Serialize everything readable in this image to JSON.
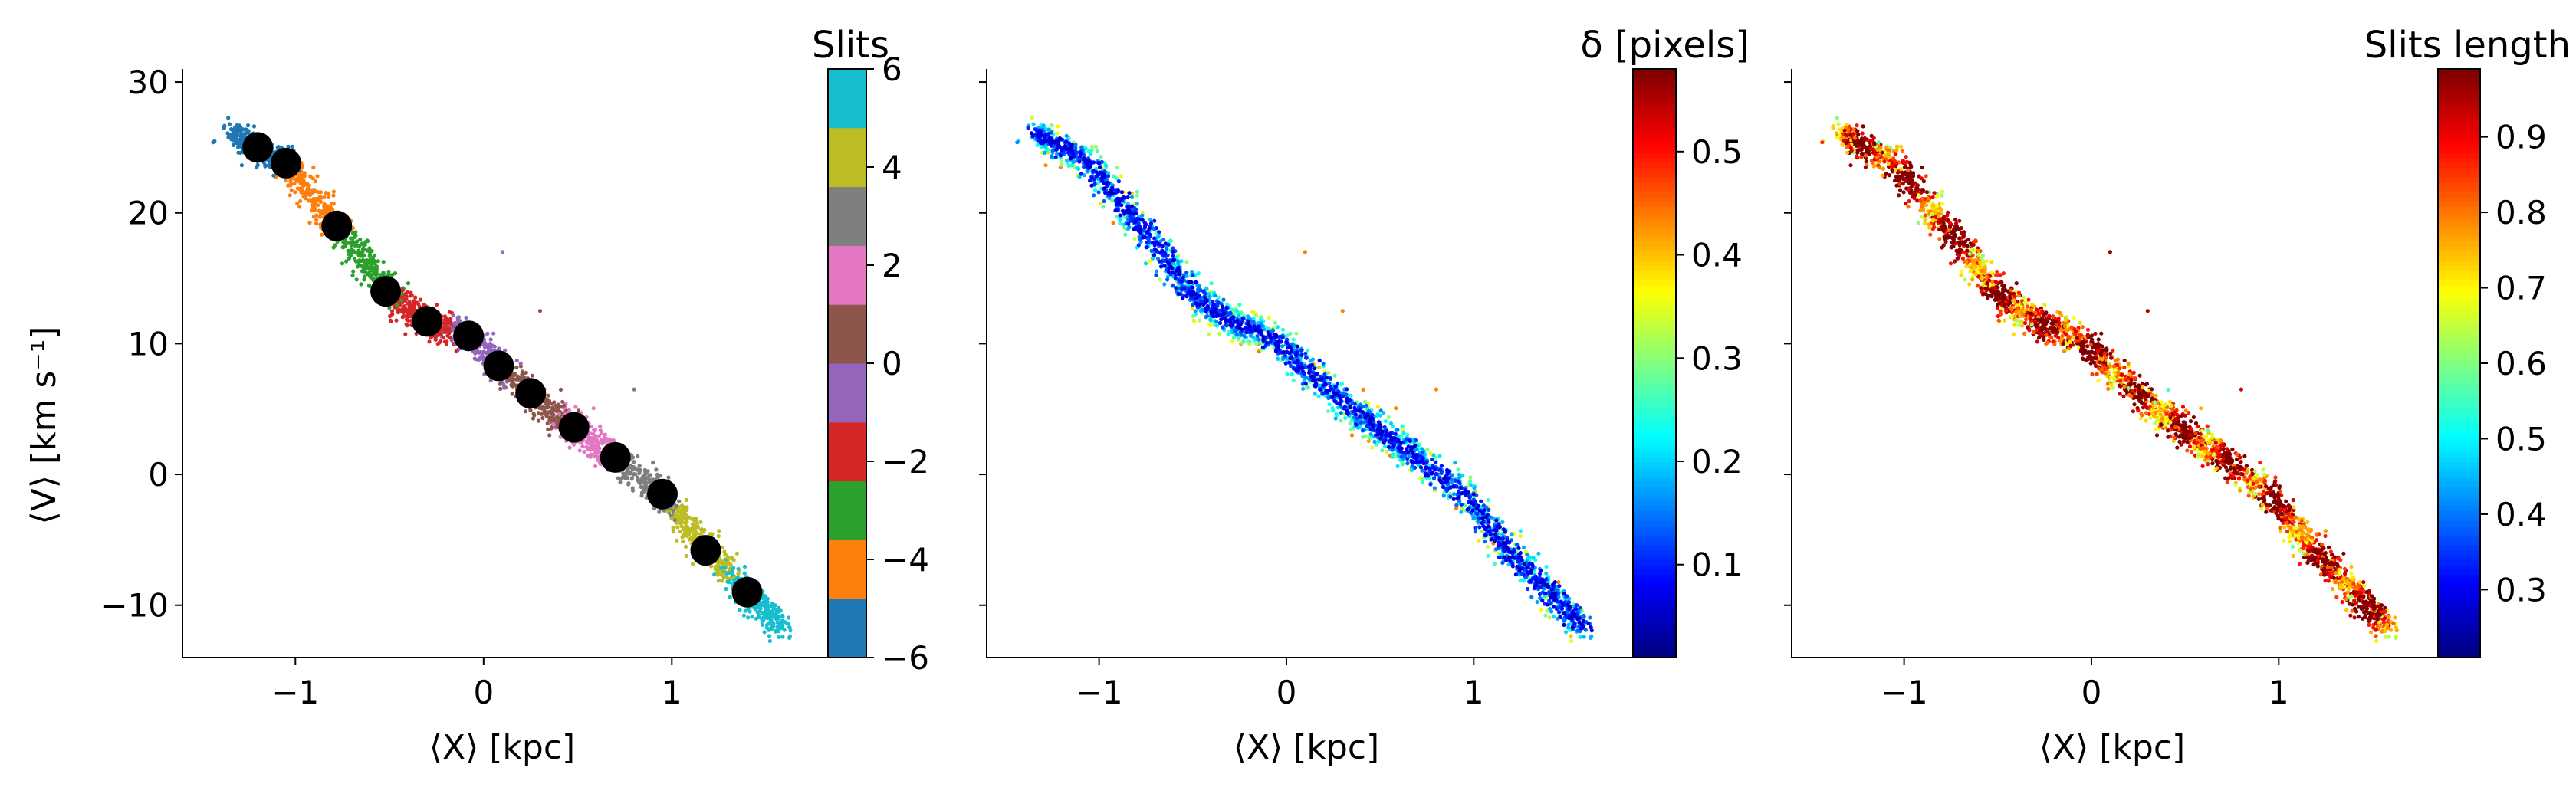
{
  "chart_data": [
    {
      "type": "scatter",
      "panel": "left",
      "xlabel": "⟨X⟩ [kpc]",
      "ylabel": "⟨V⟩ [km s⁻¹]",
      "xlim": [
        -1.6,
        1.85
      ],
      "ylim": [
        -14,
        31
      ],
      "xticks": [
        -1,
        0,
        1
      ],
      "xtick_labels": [
        "−1",
        "0",
        "1"
      ],
      "yticks": [
        -10,
        0,
        10,
        20,
        30
      ],
      "ytick_labels": [
        "−10",
        "0",
        "10",
        "20",
        "30"
      ],
      "colorbar": {
        "label": "Slits",
        "type": "discrete",
        "range": [
          -6,
          6
        ],
        "ticks": [
          -6,
          -4,
          -2,
          0,
          2,
          4,
          6
        ],
        "tick_labels": [
          "−6",
          "−4",
          "−2",
          "0",
          "2",
          "4",
          "6"
        ],
        "colors": [
          "#1f77b4",
          "#ff7f0e",
          "#2ca02c",
          "#d62728",
          "#9467bd",
          "#8c564b",
          "#e377c2",
          "#7f7f7f",
          "#bcbd22",
          "#17becf"
        ]
      },
      "series": [
        {
          "kind": "points",
          "description_color": "colored by slit index",
          "band": {
            "x_start": -1.35,
            "x_end": 1.6,
            "v_at_x_start": 27.5,
            "v_at_x_end": -10.5,
            "scatter_kpc_per_side_v": 1.2,
            "kink_region_x": [
              -0.3,
              0.3
            ]
          }
        },
        {
          "kind": "slit_means",
          "color": "#000000",
          "x": [
            -1.2,
            -1.05,
            -0.78,
            -0.52,
            -0.3,
            -0.08,
            0.08,
            0.25,
            0.48,
            0.7,
            0.95,
            1.18,
            1.4
          ],
          "y": [
            25.0,
            23.8,
            19.0,
            14.0,
            11.7,
            10.6,
            8.3,
            6.2,
            3.6,
            1.3,
            -1.5,
            -5.8,
            -9.0
          ]
        }
      ]
    },
    {
      "type": "scatter",
      "panel": "middle",
      "xlabel": "⟨X⟩ [kpc]",
      "xlim": [
        -1.6,
        1.85
      ],
      "ylim": [
        -14,
        31
      ],
      "xticks": [
        -1,
        0,
        1
      ],
      "xtick_labels": [
        "−1",
        "0",
        "1"
      ],
      "colorbar": {
        "label": "δ [pixels]",
        "type": "continuous",
        "colormap": "jet",
        "range": [
          0.01,
          0.58
        ],
        "ticks": [
          0.1,
          0.2,
          0.3,
          0.4,
          0.5
        ],
        "tick_labels": [
          "0.1",
          "0.2",
          "0.3",
          "0.4",
          "0.5"
        ]
      },
      "series": [
        {
          "kind": "points",
          "description_color": "colored by δ; core of band low (blue), edges high (green/yellow)"
        }
      ]
    },
    {
      "type": "scatter",
      "panel": "right",
      "xlabel": "⟨X⟩ [kpc]",
      "xlim": [
        -1.6,
        1.85
      ],
      "ylim": [
        -14,
        31
      ],
      "xticks": [
        -1,
        0,
        1
      ],
      "xtick_labels": [
        "−1",
        "0",
        "1"
      ],
      "colorbar": {
        "label": "Slits length",
        "type": "continuous",
        "colormap": "jet",
        "range": [
          0.21,
          0.99
        ],
        "ticks": [
          0.3,
          0.4,
          0.5,
          0.6,
          0.7,
          0.8,
          0.9
        ],
        "tick_labels": [
          "0.3",
          "0.4",
          "0.5",
          "0.6",
          "0.7",
          "0.8",
          "0.9"
        ]
      },
      "series": [
        {
          "kind": "points",
          "description_color": "colored by slits length; mostly red/orange with yellow-green near slit edges"
        }
      ]
    }
  ]
}
